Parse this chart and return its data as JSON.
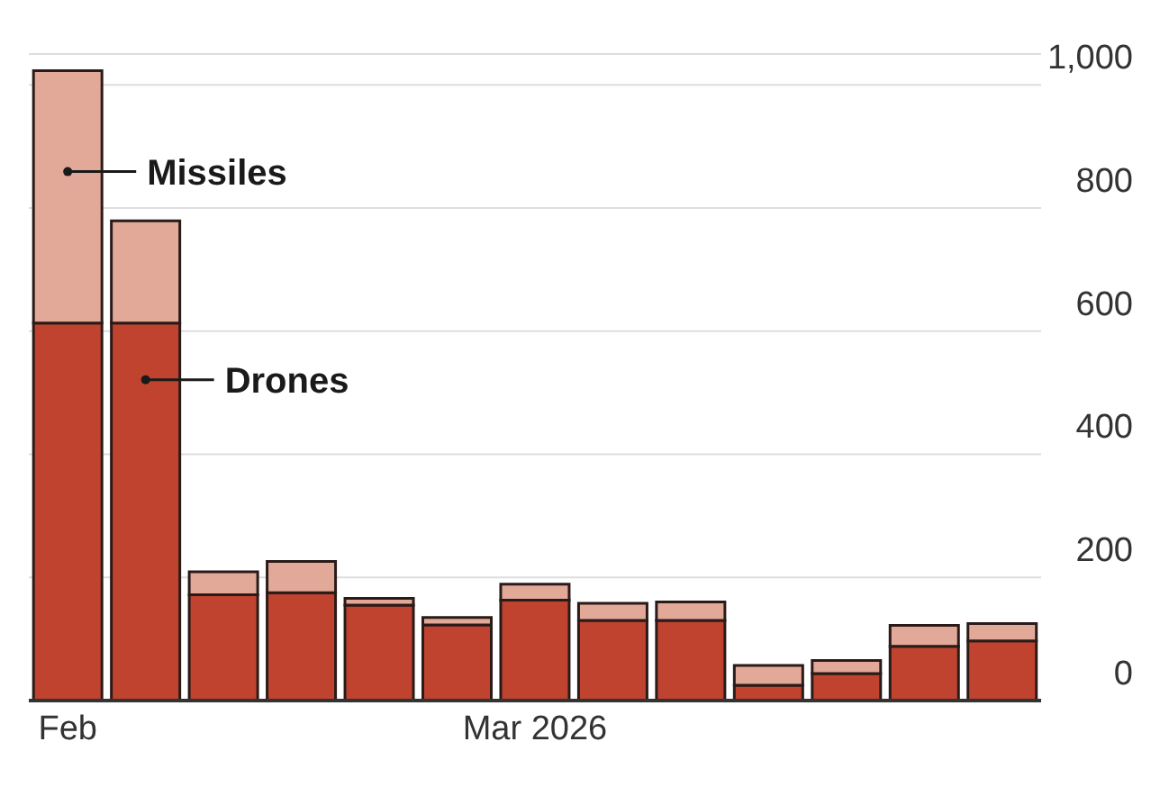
{
  "chart_data": {
    "type": "bar",
    "stacked": true,
    "categories": [
      "Feb",
      null,
      null,
      null,
      null,
      null,
      "Mar 2026",
      null,
      null,
      null,
      null,
      null,
      null
    ],
    "series": [
      {
        "name": "Drones",
        "color": "#c0432f",
        "values": [
          613,
          613,
          172,
          175,
          155,
          123,
          163,
          130,
          130,
          25,
          44,
          88,
          97
        ]
      },
      {
        "name": "Missiles",
        "color": "#e2a999",
        "values": [
          410,
          166,
          37,
          51,
          11,
          12,
          26,
          28,
          30,
          32,
          21,
          34,
          28
        ]
      }
    ],
    "ylim": [
      0,
      1050
    ],
    "yticks": [
      0,
      200,
      400,
      600,
      800,
      {
        "value": 1000,
        "label": "1,000"
      }
    ],
    "grid": "y",
    "legend": "top left"
  }
}
